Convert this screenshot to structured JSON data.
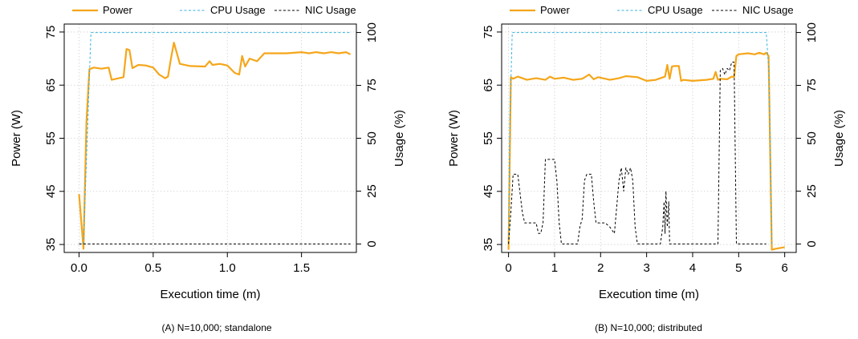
{
  "colors": {
    "power": "#f5a61a",
    "cpu": "#35b3e0",
    "nic": "#000000"
  },
  "chart_data": [
    {
      "type": "line",
      "caption": "(A) N=10,000; standalone",
      "xlabel": "Execution time (m)",
      "ylabel": "Power (W)",
      "ylabel_right": "Usage (%)",
      "xlim": [
        -0.1,
        1.87
      ],
      "ylim": [
        33.5,
        76.5
      ],
      "ylim_right": [
        -4,
        104
      ],
      "xticks": [
        0.0,
        0.5,
        1.0,
        1.5
      ],
      "xtick_labels": [
        "0.0",
        "0.5",
        "1.0",
        "1.5"
      ],
      "yticks": [
        35,
        45,
        55,
        65,
        75
      ],
      "ytick_labels": [
        "35",
        "45",
        "55",
        "65",
        "75"
      ],
      "yticks_right": [
        0,
        25,
        50,
        75,
        100
      ],
      "ytick_labels_right": [
        "0",
        "25",
        "50",
        "75",
        "100"
      ],
      "legend": [
        "Power",
        "CPU Usage",
        "NIC Usage"
      ],
      "legend_position": "top",
      "grid": true,
      "series": [
        {
          "name": "Power",
          "axis": "left",
          "style": "solid",
          "x": [
            0.0,
            0.03,
            0.05,
            0.07,
            0.1,
            0.15,
            0.2,
            0.22,
            0.25,
            0.3,
            0.32,
            0.34,
            0.36,
            0.4,
            0.45,
            0.5,
            0.54,
            0.58,
            0.6,
            0.62,
            0.64,
            0.68,
            0.75,
            0.85,
            0.88,
            0.9,
            0.95,
            1.0,
            1.05,
            1.08,
            1.1,
            1.12,
            1.15,
            1.2,
            1.25,
            1.3,
            1.4,
            1.5,
            1.55,
            1.6,
            1.65,
            1.7,
            1.75,
            1.8,
            1.83
          ],
          "y": [
            44.5,
            34.2,
            58,
            68,
            68.3,
            68.1,
            68.3,
            66,
            66.2,
            66.5,
            71.8,
            71.6,
            68.2,
            68.8,
            68.7,
            68.3,
            67,
            66.3,
            66.6,
            70,
            73,
            69,
            68.6,
            68.5,
            69.5,
            68.8,
            69,
            68.7,
            67.3,
            67,
            70.5,
            68.5,
            70,
            69.5,
            71,
            71,
            71,
            71.2,
            71,
            71.2,
            71,
            71.2,
            71,
            71.2,
            70.8
          ]
        },
        {
          "name": "CPU Usage",
          "axis": "right",
          "style": "dashed",
          "x": [
            0.0,
            0.03,
            0.06,
            0.08,
            1.83
          ],
          "y": [
            0,
            0,
            60,
            100,
            100
          ]
        },
        {
          "name": "NIC Usage",
          "axis": "right",
          "style": "dashed",
          "x": [
            0.0,
            1.83
          ],
          "y": [
            0,
            0
          ]
        }
      ]
    },
    {
      "type": "line",
      "caption": "(B) N=10,000; distributed",
      "xlabel": "Execution time (m)",
      "ylabel": "Power (W)",
      "ylabel_right": "Usage (%)",
      "xlim": [
        -0.15,
        6.25
      ],
      "ylim": [
        33.5,
        76.5
      ],
      "ylim_right": [
        -4,
        104
      ],
      "xticks": [
        0,
        1,
        2,
        3,
        4,
        5,
        6
      ],
      "xtick_labels": [
        "0",
        "1",
        "2",
        "3",
        "4",
        "5",
        "6"
      ],
      "yticks": [
        35,
        45,
        55,
        65,
        75
      ],
      "ytick_labels": [
        "35",
        "45",
        "55",
        "65",
        "75"
      ],
      "yticks_right": [
        0,
        25,
        50,
        75,
        100
      ],
      "ytick_labels_right": [
        "0",
        "25",
        "50",
        "75",
        "100"
      ],
      "legend": [
        "Power",
        "CPU Usage",
        "NIC Usage"
      ],
      "legend_position": "top",
      "grid": true,
      "series": [
        {
          "name": "Power",
          "axis": "left",
          "style": "solid",
          "x": [
            0.0,
            0.05,
            0.1,
            0.2,
            0.4,
            0.6,
            0.8,
            0.9,
            1.0,
            1.2,
            1.4,
            1.6,
            1.75,
            1.85,
            1.95,
            2.2,
            2.4,
            2.55,
            2.8,
            3.0,
            3.2,
            3.4,
            3.45,
            3.5,
            3.55,
            3.6,
            3.7,
            3.75,
            3.8,
            4.0,
            4.3,
            4.45,
            4.5,
            4.55,
            4.6,
            4.75,
            4.85,
            4.9,
            4.95,
            5.0,
            5.2,
            5.35,
            5.45,
            5.55,
            5.6,
            5.65,
            5.72,
            5.8,
            6.0
          ],
          "y": [
            34,
            66.5,
            66.2,
            66.6,
            66,
            66.3,
            66,
            66.6,
            66.2,
            66.4,
            66,
            66.2,
            67,
            66.1,
            66.5,
            66,
            66.3,
            66.7,
            66.5,
            65.8,
            66,
            66.6,
            68.8,
            66.2,
            68.5,
            68.6,
            68.6,
            65.8,
            66,
            65.8,
            66,
            66.2,
            67.5,
            66,
            66.2,
            66.1,
            66.6,
            66.5,
            70.5,
            70.8,
            71,
            70.8,
            71.1,
            70.8,
            71.1,
            70.5,
            34,
            34.2,
            34.5
          ]
        },
        {
          "name": "CPU Usage",
          "axis": "right",
          "style": "dashed",
          "x": [
            0.0,
            0.03,
            0.08,
            5.6,
            5.66,
            5.72
          ],
          "y": [
            0,
            60,
            100,
            100,
            80,
            0
          ]
        },
        {
          "name": "NIC Usage",
          "axis": "right",
          "style": "dashed",
          "x": [
            0.0,
            0.05,
            0.1,
            0.2,
            0.3,
            0.35,
            0.45,
            0.6,
            0.65,
            0.7,
            0.75,
            0.8,
            0.9,
            1.0,
            1.05,
            1.1,
            1.15,
            1.4,
            1.5,
            1.55,
            1.6,
            1.65,
            1.7,
            1.8,
            1.85,
            1.9,
            2.0,
            2.1,
            2.2,
            2.3,
            2.4,
            2.45,
            2.5,
            2.55,
            2.6,
            2.65,
            2.7,
            2.75,
            2.8,
            2.85,
            2.9,
            3.0,
            3.1,
            3.3,
            3.35,
            3.38,
            3.4,
            3.42,
            3.45,
            3.48,
            3.5,
            3.55,
            4.0,
            4.5,
            4.55,
            4.6,
            4.65,
            4.7,
            4.75,
            4.8,
            4.85,
            4.9,
            4.95,
            5.0,
            5.2,
            5.4,
            5.5,
            5.6
          ],
          "y": [
            0,
            15,
            33,
            33,
            15,
            10,
            10,
            10,
            5,
            5,
            10,
            40,
            40,
            40,
            30,
            10,
            0,
            0,
            0,
            8,
            12,
            30,
            33,
            33,
            20,
            10,
            10,
            10,
            8,
            5,
            30,
            36,
            25,
            36,
            33,
            36,
            30,
            8,
            0,
            0,
            0,
            0,
            0,
            0,
            8,
            20,
            5,
            25,
            8,
            20,
            0,
            0,
            0,
            0,
            0,
            82,
            83,
            80,
            83,
            82,
            86,
            86,
            0,
            0,
            0,
            0,
            0,
            0
          ]
        }
      ]
    }
  ]
}
